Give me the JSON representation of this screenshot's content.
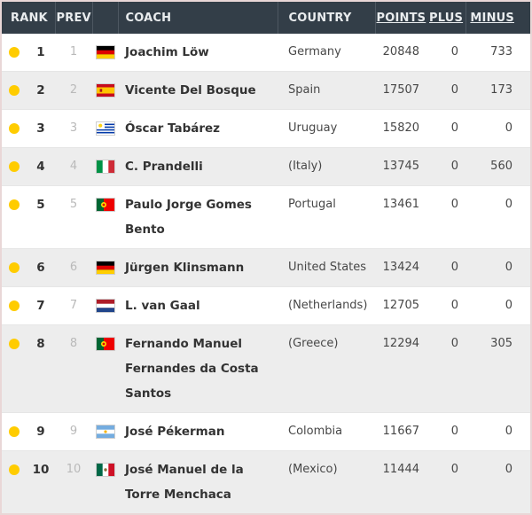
{
  "colors": {
    "header_bg": "#333e48",
    "header_text": "#e9ecee",
    "header_separator": "#4d5761",
    "row_alt_bg": "#ededed",
    "outer_border": "#e9d7d7",
    "rank_dot": "#ffcc00",
    "coach_text": "#333333",
    "body_text": "#474747",
    "prev_text": "#b9b9b9"
  },
  "header": {
    "columns": [
      {
        "key": "rank",
        "label": "RANK",
        "sortable": false
      },
      {
        "key": "prev",
        "label": "PREV",
        "sortable": false
      },
      {
        "key": "flag",
        "label": "",
        "sortable": false
      },
      {
        "key": "coach",
        "label": "COACH",
        "sortable": false
      },
      {
        "key": "country",
        "label": "COUNTRY",
        "sortable": false
      },
      {
        "key": "points",
        "label": "POINTS",
        "sortable": true
      },
      {
        "key": "plus",
        "label": "PLUS",
        "sortable": true
      },
      {
        "key": "minus",
        "label": "MINUS",
        "sortable": true
      }
    ]
  },
  "rows": [
    {
      "rank": "1",
      "prev": "1",
      "flag": "germany",
      "coach": "Joachim Löw",
      "country": "Germany",
      "points": "20848",
      "plus": "0",
      "minus": "733"
    },
    {
      "rank": "2",
      "prev": "2",
      "flag": "spain",
      "coach": "Vicente Del Bosque",
      "country": "Spain",
      "points": "17507",
      "plus": "0",
      "minus": "173"
    },
    {
      "rank": "3",
      "prev": "3",
      "flag": "uruguay",
      "coach": "Óscar Tabárez",
      "country": "Uruguay",
      "points": "15820",
      "plus": "0",
      "minus": "0"
    },
    {
      "rank": "4",
      "prev": "4",
      "flag": "italy",
      "coach": "C. Prandelli",
      "country": "(Italy)",
      "points": "13745",
      "plus": "0",
      "minus": "560"
    },
    {
      "rank": "5",
      "prev": "5",
      "flag": "portugal",
      "coach": "Paulo Jorge Gomes Bento",
      "country": "Portugal",
      "points": "13461",
      "plus": "0",
      "minus": "0"
    },
    {
      "rank": "6",
      "prev": "6",
      "flag": "germany",
      "coach": "Jürgen Klinsmann",
      "country": "United States",
      "points": "13424",
      "plus": "0",
      "minus": "0"
    },
    {
      "rank": "7",
      "prev": "7",
      "flag": "netherlands",
      "coach": "L. van Gaal",
      "country": "(Netherlands)",
      "points": "12705",
      "plus": "0",
      "minus": "0"
    },
    {
      "rank": "8",
      "prev": "8",
      "flag": "portugal",
      "coach": "Fernando Manuel Fernandes da Costa Santos",
      "country": "(Greece)",
      "points": "12294",
      "plus": "0",
      "minus": "305"
    },
    {
      "rank": "9",
      "prev": "9",
      "flag": "argentina",
      "coach": "José Pékerman",
      "country": "Colombia",
      "points": "11667",
      "plus": "0",
      "minus": "0"
    },
    {
      "rank": "10",
      "prev": "10",
      "flag": "mexico",
      "coach": "José Manuel de la Torre Menchaca",
      "country": "(Mexico)",
      "points": "11444",
      "plus": "0",
      "minus": "0"
    }
  ]
}
